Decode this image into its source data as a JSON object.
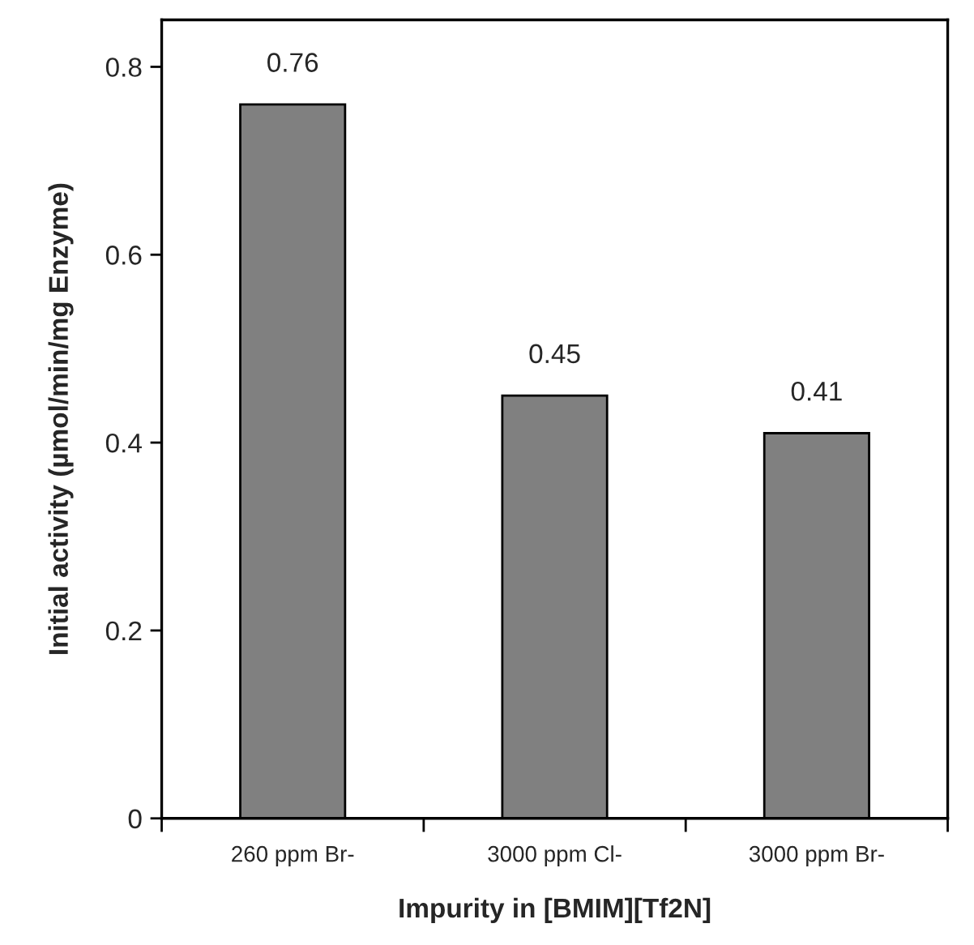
{
  "chart_data": {
    "type": "bar",
    "xlabel": "Impurity in [BMIM][Tf2N]",
    "ylabel": "Initial activity (µmol/min/mg Enzyme)",
    "categories": [
      "260 ppm Br-",
      "3000 ppm Cl-",
      "3000 ppm Br-"
    ],
    "series": [
      {
        "color": "#808080",
        "values": [
          0.76,
          0.45,
          0.41
        ]
      }
    ],
    "ylim": [
      0,
      0.85
    ],
    "yticks": [
      0,
      0.2,
      0.4,
      0.6,
      0.8
    ],
    "data_labels": true,
    "grid": false,
    "legend": false
  }
}
